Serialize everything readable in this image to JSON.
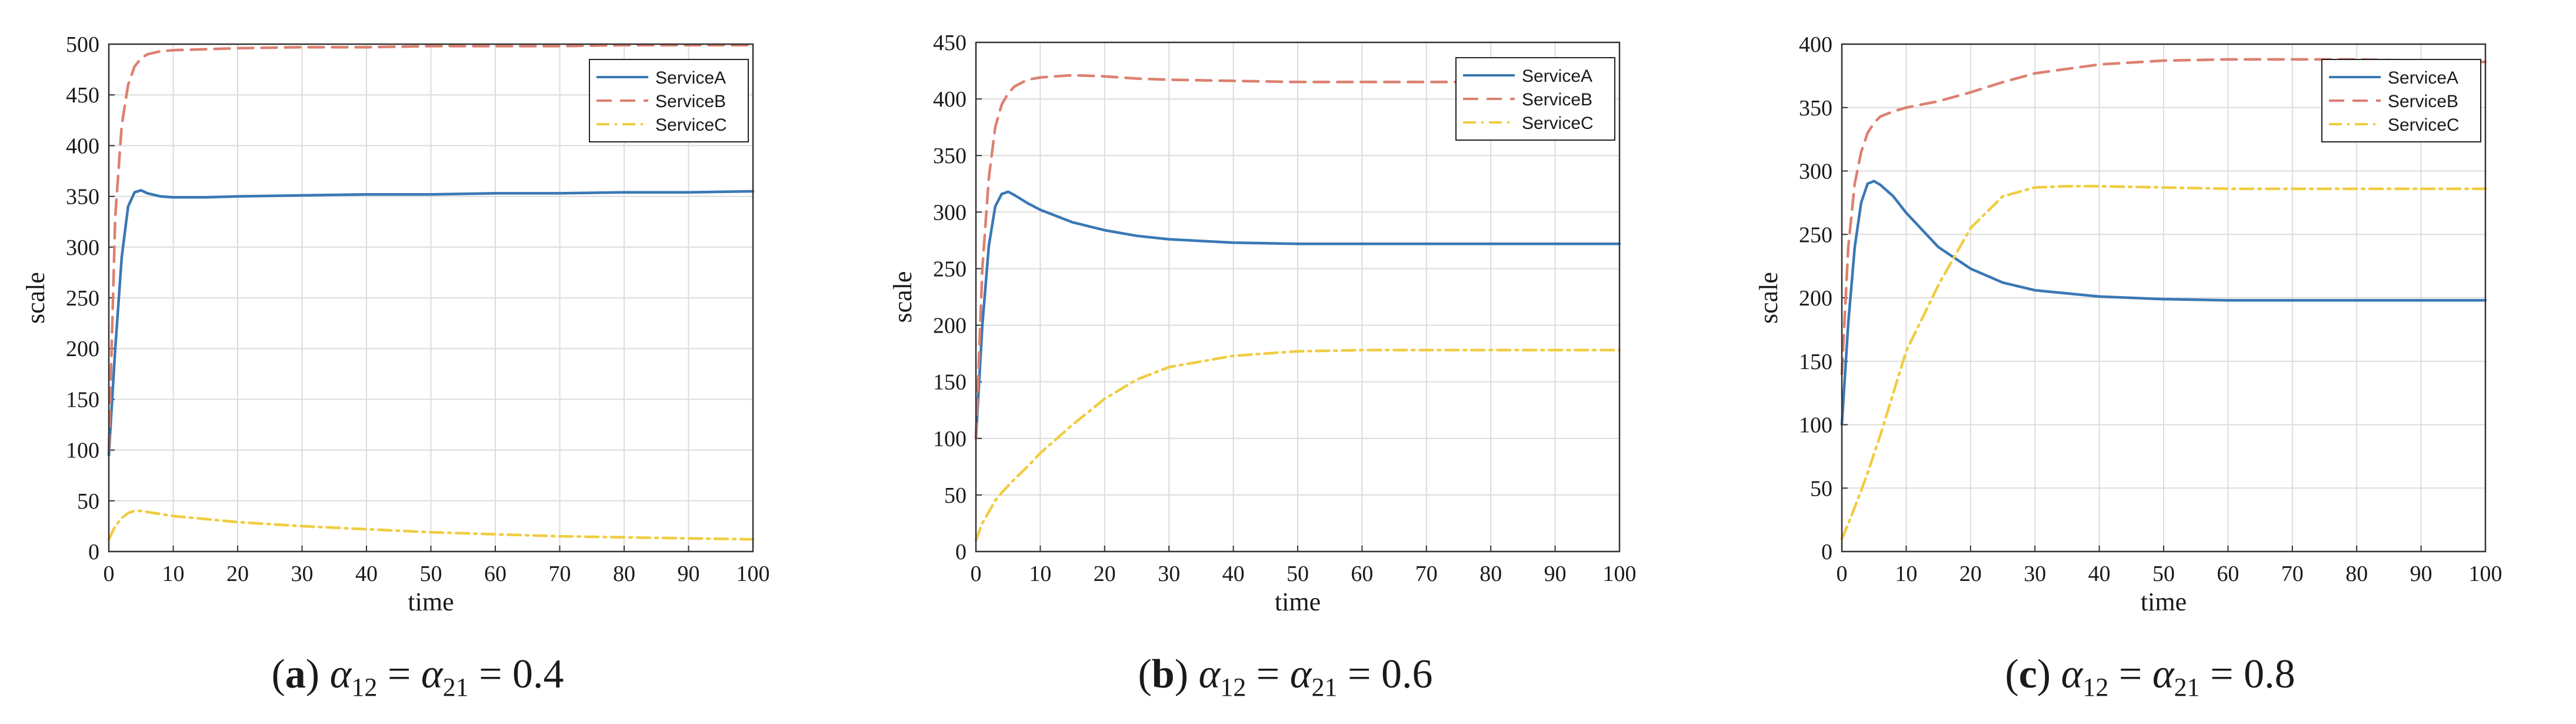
{
  "chart_data": [
    {
      "type": "line",
      "subfigure": "a",
      "caption": "α12 = α21 = 0.4",
      "caption_letter": "a",
      "caption_alpha": "0.4",
      "xlabel": "time",
      "ylabel": "scale",
      "xlim": [
        0,
        100
      ],
      "ylim": [
        0,
        500
      ],
      "xticks": [
        0,
        10,
        20,
        30,
        40,
        50,
        60,
        70,
        80,
        90,
        100
      ],
      "yticks": [
        0,
        50,
        100,
        150,
        200,
        250,
        300,
        350,
        400,
        450,
        500
      ],
      "grid": true,
      "legend": "top-right",
      "series": [
        {
          "name": "ServiceA",
          "x": [
            0,
            1,
            2,
            3,
            4,
            5,
            6,
            8,
            10,
            15,
            20,
            30,
            40,
            50,
            60,
            70,
            80,
            90,
            100
          ],
          "values": [
            95,
            200,
            290,
            340,
            354,
            356,
            353,
            350,
            349,
            349,
            350,
            351,
            352,
            352,
            353,
            353,
            354,
            354,
            355
          ]
        },
        {
          "name": "ServiceB",
          "x": [
            0,
            1,
            2,
            3,
            4,
            5,
            6,
            8,
            10,
            15,
            20,
            30,
            40,
            50,
            60,
            70,
            80,
            90,
            100
          ],
          "values": [
            100,
            330,
            420,
            460,
            478,
            486,
            490,
            493,
            494,
            495,
            496,
            497,
            497,
            498,
            498,
            498,
            499,
            499,
            499
          ]
        },
        {
          "name": "ServiceC",
          "x": [
            0,
            1,
            2,
            3,
            4,
            5,
            6,
            8,
            10,
            15,
            20,
            30,
            40,
            50,
            60,
            70,
            80,
            90,
            100
          ],
          "values": [
            12,
            25,
            33,
            38,
            40,
            40,
            39,
            37,
            35,
            32,
            29,
            25,
            22,
            19,
            17,
            15,
            14,
            13,
            12
          ]
        }
      ]
    },
    {
      "type": "line",
      "subfigure": "b",
      "caption": "α12 = α21 = 0.6",
      "caption_letter": "b",
      "caption_alpha": "0.6",
      "xlabel": "time",
      "ylabel": "scale",
      "xlim": [
        0,
        100
      ],
      "ylim": [
        0,
        450
      ],
      "xticks": [
        0,
        10,
        20,
        30,
        40,
        50,
        60,
        70,
        80,
        90,
        100
      ],
      "yticks": [
        0,
        50,
        100,
        150,
        200,
        250,
        300,
        350,
        400,
        450
      ],
      "grid": true,
      "legend": "top-right",
      "series": [
        {
          "name": "ServiceA",
          "x": [
            0,
            1,
            2,
            3,
            4,
            5,
            6,
            8,
            10,
            15,
            20,
            25,
            30,
            40,
            50,
            60,
            70,
            80,
            90,
            100
          ],
          "values": [
            100,
            200,
            270,
            305,
            316,
            318,
            315,
            308,
            302,
            291,
            284,
            279,
            276,
            273,
            272,
            272,
            272,
            272,
            272,
            272
          ]
        },
        {
          "name": "ServiceB",
          "x": [
            0,
            1,
            2,
            3,
            4,
            5,
            6,
            8,
            10,
            15,
            20,
            25,
            30,
            40,
            50,
            60,
            70,
            80,
            90,
            100
          ],
          "values": [
            100,
            250,
            330,
            375,
            395,
            405,
            411,
            417,
            419,
            421,
            420,
            418,
            417,
            416,
            415,
            415,
            415,
            415,
            415,
            415
          ]
        },
        {
          "name": "ServiceC",
          "x": [
            0,
            1,
            2,
            3,
            4,
            5,
            6,
            8,
            10,
            15,
            20,
            25,
            30,
            40,
            50,
            60,
            70,
            80,
            90,
            100
          ],
          "values": [
            10,
            25,
            35,
            45,
            52,
            58,
            64,
            75,
            87,
            112,
            135,
            152,
            163,
            173,
            177,
            178,
            178,
            178,
            178,
            178
          ]
        }
      ]
    },
    {
      "type": "line",
      "subfigure": "c",
      "caption": "α12 = α21 = 0.8",
      "caption_letter": "c",
      "caption_alpha": "0.8",
      "xlabel": "time",
      "ylabel": "scale",
      "xlim": [
        0,
        100
      ],
      "ylim": [
        0,
        400
      ],
      "xticks": [
        0,
        10,
        20,
        30,
        40,
        50,
        60,
        70,
        80,
        90,
        100
      ],
      "yticks": [
        0,
        50,
        100,
        150,
        200,
        250,
        300,
        350,
        400
      ],
      "grid": true,
      "legend": "top-right",
      "series": [
        {
          "name": "ServiceA",
          "x": [
            0,
            1,
            2,
            3,
            4,
            5,
            6,
            8,
            10,
            15,
            20,
            25,
            30,
            40,
            50,
            60,
            70,
            80,
            90,
            100
          ],
          "values": [
            100,
            180,
            240,
            275,
            290,
            292,
            289,
            280,
            267,
            240,
            223,
            212,
            206,
            201,
            199,
            198,
            198,
            198,
            198,
            198
          ]
        },
        {
          "name": "ServiceB",
          "x": [
            0,
            1,
            2,
            3,
            4,
            5,
            6,
            8,
            10,
            15,
            20,
            25,
            30,
            40,
            50,
            60,
            70,
            80,
            90,
            100
          ],
          "values": [
            140,
            240,
            290,
            315,
            330,
            338,
            343,
            347,
            350,
            355,
            362,
            370,
            377,
            384,
            387,
            388,
            388,
            388,
            387,
            386
          ]
        },
        {
          "name": "ServiceC",
          "x": [
            0,
            1,
            2,
            3,
            4,
            5,
            6,
            8,
            10,
            15,
            20,
            25,
            30,
            35,
            40,
            50,
            60,
            70,
            80,
            90,
            100
          ],
          "values": [
            10,
            22,
            35,
            48,
            62,
            77,
            92,
            125,
            158,
            210,
            255,
            280,
            287,
            288,
            288,
            287,
            286,
            286,
            286,
            286,
            286
          ]
        }
      ]
    }
  ],
  "colors": {
    "ServiceA": "#3a78b5",
    "ServiceB": "#dd8070",
    "ServiceC": "#f0cc40",
    "grid": "#dcdcdc",
    "axis": "#333333",
    "legend_border": "#222222"
  }
}
